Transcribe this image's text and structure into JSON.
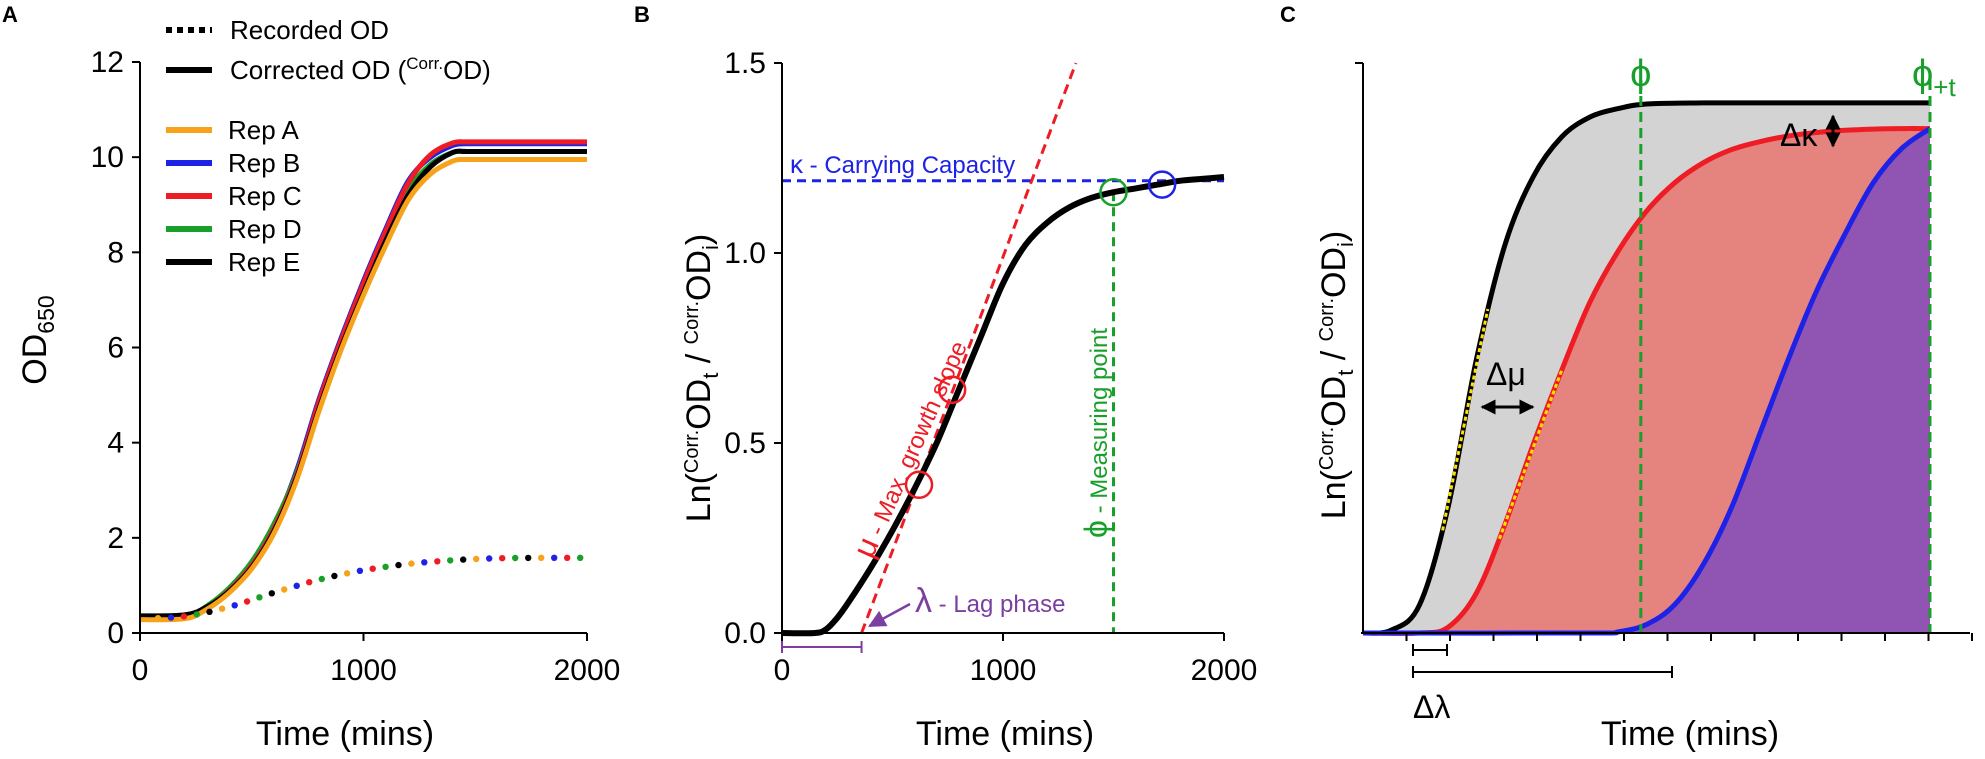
{
  "colors": {
    "repA": "#f7a21b",
    "repB": "#1e22e6",
    "repC": "#ee1c24",
    "repD": "#18a02a",
    "repE": "#000000",
    "kappa": "#1e22e6",
    "mu": "#ee1c24",
    "phi": "#18a02a",
    "lambda": "#7b3fa0",
    "fill_grey": "#d3d3d3",
    "fill_red": "#e5847f",
    "fill_purple": "#9055b2",
    "yellow": "#ffe000"
  },
  "chart_data": [
    {
      "panel": "A",
      "type": "line",
      "xlabel": "Time (mins)",
      "ylabel_main": "OD",
      "ylabel_sub": "650",
      "xlim": [
        0,
        2000
      ],
      "ylim": [
        0,
        12
      ],
      "xticks": [
        "0",
        "1000",
        "2000"
      ],
      "yticks": [
        "0",
        "2",
        "4",
        "6",
        "8",
        "10",
        "12"
      ],
      "legend_styles": [
        {
          "label": "Recorded OD",
          "style": "dotted"
        },
        {
          "label_main": "Corrected OD (",
          "label_sup": "Corr.",
          "label_end": "OD)",
          "style": "solid"
        }
      ],
      "legend_reps": [
        "Rep A",
        "Rep B",
        "Rep C",
        "Rep D",
        "Rep E"
      ],
      "corrected_series": [
        {
          "name": "Rep B",
          "x": [
            0,
            200,
            300,
            400,
            500,
            600,
            700,
            800,
            900,
            1000,
            1100,
            1200,
            1300,
            1400,
            1450,
            1500,
            2000
          ],
          "y": [
            0.32,
            0.34,
            0.55,
            0.9,
            1.45,
            2.25,
            3.4,
            4.9,
            6.2,
            7.4,
            8.5,
            9.5,
            10.0,
            10.25,
            10.28,
            10.28,
            10.28
          ]
        },
        {
          "name": "Rep D",
          "x": [
            0,
            200,
            300,
            400,
            500,
            600,
            700,
            800,
            900,
            1000,
            1100,
            1200,
            1300,
            1400,
            1450,
            1500,
            2000
          ],
          "y": [
            0.32,
            0.34,
            0.57,
            0.95,
            1.5,
            2.3,
            3.35,
            4.8,
            6.05,
            7.2,
            8.3,
            9.3,
            9.85,
            10.1,
            10.12,
            10.12,
            10.12
          ]
        },
        {
          "name": "Rep C",
          "x": [
            0,
            200,
            300,
            400,
            500,
            600,
            700,
            800,
            900,
            1000,
            1100,
            1200,
            1300,
            1400,
            1450,
            1500,
            2000
          ],
          "y": [
            0.3,
            0.33,
            0.54,
            0.9,
            1.42,
            2.2,
            3.3,
            4.85,
            6.15,
            7.35,
            8.45,
            9.45,
            10.05,
            10.3,
            10.32,
            10.32,
            10.32
          ]
        },
        {
          "name": "Rep E",
          "x": [
            0,
            200,
            300,
            400,
            500,
            600,
            700,
            800,
            900,
            1000,
            1100,
            1200,
            1300,
            1400,
            1450,
            1500,
            2000
          ],
          "y": [
            0.36,
            0.38,
            0.55,
            0.88,
            1.38,
            2.15,
            3.25,
            4.7,
            6.0,
            7.15,
            8.25,
            9.2,
            9.8,
            10.1,
            10.12,
            10.12,
            10.12
          ]
        },
        {
          "name": "Rep A",
          "x": [
            0,
            200,
            300,
            400,
            500,
            600,
            700,
            800,
            900,
            1000,
            1100,
            1200,
            1300,
            1400,
            1450,
            1500,
            2000
          ],
          "y": [
            0.28,
            0.3,
            0.5,
            0.85,
            1.35,
            2.1,
            3.2,
            4.65,
            5.95,
            7.1,
            8.15,
            9.1,
            9.65,
            9.92,
            9.95,
            9.95,
            9.95
          ]
        }
      ],
      "recorded_series": {
        "x": [
          0,
          200,
          400,
          600,
          800,
          1000,
          1200,
          1400,
          1600,
          1800,
          2000
        ],
        "y": [
          0.3,
          0.35,
          0.55,
          0.85,
          1.12,
          1.32,
          1.45,
          1.53,
          1.57,
          1.58,
          1.58
        ]
      }
    },
    {
      "panel": "B",
      "type": "line",
      "xlabel": "Time (mins)",
      "ylabel_parts": [
        "Ln(",
        "Corr.",
        "OD",
        "t",
        " / ",
        "Corr.",
        "OD",
        "i",
        ")"
      ],
      "xlim": [
        0,
        2000
      ],
      "ylim": [
        0,
        1.5
      ],
      "xticks": [
        "0",
        "1000",
        "2000"
      ],
      "yticks": [
        "0.0",
        "0.5",
        "1.0",
        "1.5"
      ],
      "curve": {
        "x": [
          0,
          150,
          200,
          250,
          300,
          400,
          500,
          600,
          700,
          800,
          900,
          1000,
          1100,
          1200,
          1300,
          1400,
          1500,
          1600,
          1700,
          1800,
          1900,
          2000
        ],
        "y": [
          0,
          0,
          0.01,
          0.04,
          0.08,
          0.17,
          0.27,
          0.38,
          0.5,
          0.64,
          0.78,
          0.92,
          1.02,
          1.08,
          1.12,
          1.145,
          1.16,
          1.17,
          1.18,
          1.19,
          1.195,
          1.2
        ]
      },
      "slope_line": {
        "x": [
          360,
          1330
        ],
        "y": [
          0,
          1.5
        ]
      },
      "carrying_capacity_y": 1.19,
      "measuring_point_x": 1500,
      "lag_end_x": 360,
      "circles": [
        {
          "series": "mu",
          "x": 620,
          "y": 0.39
        },
        {
          "series": "mu",
          "x": 770,
          "y": 0.64
        },
        {
          "series": "phi",
          "x": 1500,
          "y": 1.16
        },
        {
          "series": "kappa",
          "x": 1720,
          "y": 1.18
        }
      ],
      "annotations": {
        "kappa_symbol": "κ",
        "kappa_text": " - Carrying Capacity",
        "mu_symbol": "μ",
        "mu_text": " - Max. growth slope",
        "phi_symbol": "ϕ",
        "phi_text": " - Measuring point",
        "lambda_symbol": "λ",
        "lambda_text": " - Lag phase"
      }
    },
    {
      "panel": "C",
      "type": "area",
      "xlabel": "Time (mins)",
      "ylabel_parts": [
        "Ln(",
        "Corr.",
        "OD",
        "t",
        " / ",
        "Corr.",
        "OD",
        "i",
        ")"
      ],
      "xlim": [
        0,
        100
      ],
      "ylim": [
        0,
        100
      ],
      "series": [
        {
          "name": "black",
          "x": [
            0,
            5,
            10,
            15,
            20,
            25,
            30,
            35,
            40,
            45,
            50,
            60,
            70,
            80,
            90,
            100
          ],
          "y": [
            0,
            0.5,
            5,
            22,
            48,
            68,
            80,
            87,
            90.5,
            92,
            92.8,
            93,
            93,
            93,
            93,
            93
          ]
        },
        {
          "name": "red",
          "x": [
            0,
            10,
            15,
            20,
            25,
            30,
            35,
            40,
            45,
            50,
            55,
            60,
            65,
            70,
            75,
            80,
            85,
            90,
            95,
            100
          ],
          "y": [
            0,
            0,
            1,
            7,
            19,
            33,
            46,
            58,
            67,
            74,
            79,
            82.5,
            84.8,
            86.2,
            87.2,
            87.8,
            88.2,
            88.4,
            88.5,
            88.5
          ]
        },
        {
          "name": "blue",
          "x": [
            0,
            40,
            45,
            50,
            55,
            60,
            65,
            70,
            75,
            80,
            85,
            90,
            95,
            100
          ],
          "y": [
            0,
            0,
            0.2,
            1.5,
            5,
            12,
            22,
            35,
            48,
            60,
            70,
            79,
            85,
            88.5
          ]
        }
      ],
      "phi_x": 49,
      "phi_t_x": 100,
      "annotations": {
        "phi": "ϕ",
        "phi_t_main": "ϕ",
        "phi_t_sub": "+t",
        "delta_kappa": "Δκ",
        "delta_mu": "Δμ",
        "delta_lambda": "Δλ"
      }
    }
  ],
  "panel_letters": [
    "A",
    "B",
    "C"
  ]
}
